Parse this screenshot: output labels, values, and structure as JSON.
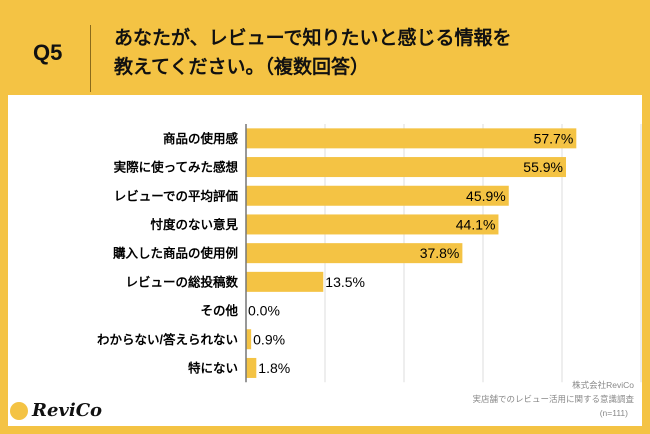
{
  "header": {
    "question": "Q5",
    "title_line1": "あなたが、レビューで知りたいと感じる情報を",
    "title_line2": "教えてください。（複数回答）"
  },
  "chart_data": {
    "type": "bar",
    "orientation": "horizontal",
    "categories": [
      "商品の使用感",
      "実際に使ってみた感想",
      "レビューでの平均評価",
      "忖度のない意見",
      "購入した商品の使用例",
      "レビューの総投稿数",
      "その他",
      "わからない/答えられない",
      "特にない"
    ],
    "values": [
      57.7,
      55.9,
      45.9,
      44.1,
      37.8,
      13.5,
      0.0,
      0.9,
      1.8
    ],
    "labels": [
      "57.7%",
      "55.9%",
      "45.9%",
      "44.1%",
      "37.8%",
      "13.5%",
      "0.0%",
      "0.9%",
      "1.8%"
    ],
    "xlim": [
      0,
      69
    ],
    "grid": true,
    "bar_color": "#F4C344"
  },
  "credit": {
    "company": "株式会社ReviCo",
    "survey": "実店舗でのレビュー活用に関する意識調査",
    "n": "(n=111)"
  },
  "logo": {
    "text": "ReviCo"
  }
}
